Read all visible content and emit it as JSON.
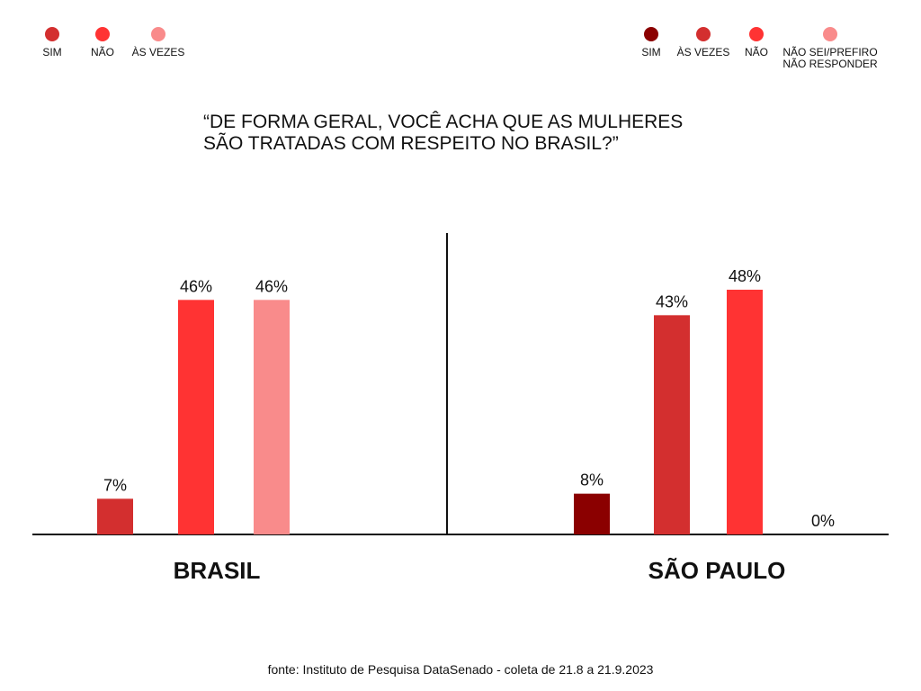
{
  "title_lines": [
    "“DE FORMA GERAL, VOCÊ ACHA QUE AS MULHERES",
    "SÃO TRATADAS COM RESPEITO NO BRASIL?”"
  ],
  "legend_left": [
    {
      "label": "SIM",
      "color": "#d32f2f"
    },
    {
      "label": "NÃO",
      "color": "#ff3333"
    },
    {
      "label": "ÀS VEZES",
      "color": "#f98b8b"
    }
  ],
  "legend_right": [
    {
      "label": "SIM",
      "color": "#8b0000"
    },
    {
      "label": "ÀS VEZES",
      "color": "#d32f2f"
    },
    {
      "label": "NÃO",
      "color": "#ff3333"
    },
    {
      "label": "NÃO SEI/PREFIRO NÃO RESPONDER",
      "color": "#f98b8b"
    }
  ],
  "source": "fonte: Instituto de Pesquisa DataSenado -  coleta de 21.8 a 21.9.2023",
  "chart_data": [
    {
      "type": "bar",
      "group_label": "BRASIL",
      "unit": "%",
      "ylim": [
        0,
        60
      ],
      "bars": [
        {
          "series": "SIM",
          "value": 7,
          "label": "7%",
          "color": "#d32f2f"
        },
        {
          "series": "NÃO",
          "value": 46,
          "label": "46%",
          "color": "#ff3333"
        },
        {
          "series": "ÀS VEZES",
          "value": 46,
          "label": "46%",
          "color": "#f98b8b"
        }
      ]
    },
    {
      "type": "bar",
      "group_label": "SÃO PAULO",
      "unit": "%",
      "ylim": [
        0,
        60
      ],
      "bars": [
        {
          "series": "SIM",
          "value": 8,
          "label": "8%",
          "color": "#8b0000"
        },
        {
          "series": "ÀS VEZES",
          "value": 43,
          "label": "43%",
          "color": "#d32f2f"
        },
        {
          "series": "NÃO",
          "value": 48,
          "label": "48%",
          "color": "#ff3333"
        },
        {
          "series": "NÃO SEI/PREFIRO NÃO RESPONDER",
          "value": 0,
          "label": "0%",
          "color": "#f98b8b"
        }
      ]
    }
  ]
}
